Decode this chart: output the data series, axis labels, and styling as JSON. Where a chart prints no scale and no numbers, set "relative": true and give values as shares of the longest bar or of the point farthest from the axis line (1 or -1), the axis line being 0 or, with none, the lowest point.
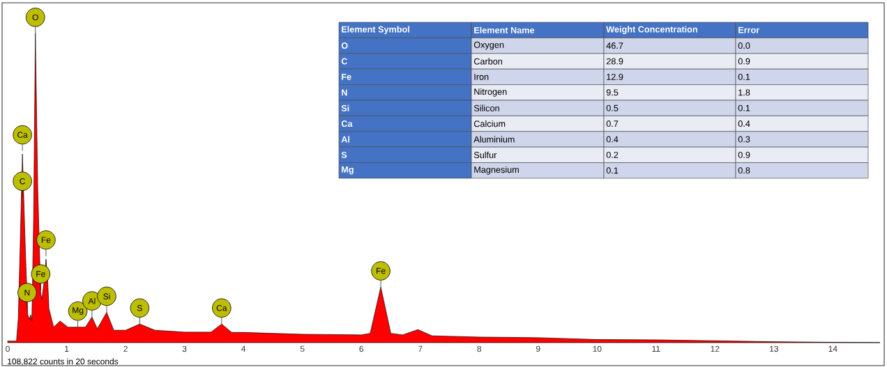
{
  "chart_data": [
    {
      "type": "area",
      "relative": true,
      "color": "#ff0000",
      "x": [
        0,
        0.15,
        0.18,
        0.21,
        0.25,
        0.3,
        0.34,
        0.37,
        0.39,
        0.41,
        0.44,
        0.47,
        0.51,
        0.56,
        0.58,
        0.62,
        0.65,
        0.68,
        0.7,
        0.78,
        0.89,
        1.02,
        1.19,
        1.32,
        1.43,
        1.52,
        1.68,
        1.8,
        2.0,
        2.24,
        2.5,
        3.0,
        3.45,
        3.63,
        3.8,
        4.0,
        5.0,
        6.0,
        6.15,
        6.33,
        6.5,
        6.7,
        6.96,
        7.2,
        8,
        9,
        10,
        11,
        12,
        13,
        14,
        14.8
      ],
      "values": [
        0.005,
        0.005,
        0.08,
        0.3,
        0.61,
        0.3,
        0.09,
        0.076,
        0.09,
        0.07,
        0.4,
        1.0,
        0.5,
        0.16,
        0.14,
        0.2,
        0.27,
        0.2,
        0.11,
        0.05,
        0.07,
        0.05,
        0.05,
        0.05,
        0.083,
        0.045,
        0.098,
        0.04,
        0.04,
        0.06,
        0.04,
        0.034,
        0.034,
        0.06,
        0.033,
        0.033,
        0.027,
        0.025,
        0.03,
        0.18,
        0.03,
        0.025,
        0.042,
        0.022,
        0.018,
        0.016,
        0.01,
        0.009,
        0.006,
        0.003,
        0.001,
        0
      ],
      "xlim": [
        0,
        14.8
      ],
      "xticks": [
        0,
        1,
        2,
        3,
        4,
        5,
        6,
        7,
        8,
        9,
        10,
        11,
        12,
        13,
        14
      ],
      "annotations": [
        {
          "text": "O",
          "x": 0.47,
          "y": 1.0
        },
        {
          "text": "Ca",
          "x": 0.25,
          "y": 0.62
        },
        {
          "text": "C",
          "x": 0.25,
          "y": 0.47
        },
        {
          "text": "N",
          "x": 0.33,
          "y": 0.11
        },
        {
          "text": "Fe",
          "x": 0.56,
          "y": 0.17
        },
        {
          "text": "Fe",
          "x": 0.65,
          "y": 0.28
        },
        {
          "text": "Mg",
          "x": 1.19,
          "y": 0.05
        },
        {
          "text": "Al",
          "x": 1.43,
          "y": 0.083
        },
        {
          "text": "Si",
          "x": 1.68,
          "y": 0.098
        },
        {
          "text": "S",
          "x": 2.24,
          "y": 0.06
        },
        {
          "text": "Ca",
          "x": 3.63,
          "y": 0.06
        },
        {
          "text": "Fe",
          "x": 6.33,
          "y": 0.18
        },
        "108,822 counts in 20 seconds"
      ]
    },
    {
      "type": "other",
      "categories": [
        "O",
        "C",
        "Fe",
        "N",
        "Si",
        "Ca",
        "Al",
        "S",
        "Mg"
      ],
      "annotations": [
        "Element Symbol",
        "Element Name",
        "Oxygen",
        "Carbon",
        "Iron",
        "Nitrogen",
        "Silicon",
        "Calcium",
        "Aluminium",
        "Sulfur",
        "Magnesium"
      ],
      "colors": [
        "#4472c4",
        "#cfd5ea",
        "#e9ebf5"
      ],
      "series": [
        {
          "name": "Weight Concentration",
          "values": [
            46.7,
            28.9,
            12.9,
            9.5,
            0.5,
            0.7,
            0.4,
            0.2,
            0.1
          ],
          "colors": [
            "#cfd5ea",
            "#e9ebf5",
            "#cfd5ea",
            "#e9ebf5",
            "#cfd5ea",
            "#e9ebf5",
            "#cfd5ea",
            "#e9ebf5",
            "#cfd5ea"
          ]
        },
        {
          "name": "Error",
          "values": [
            0.0,
            0.9,
            0.1,
            1.8,
            0.1,
            0.4,
            0.3,
            0.9,
            0.8
          ],
          "value_labels": [
            "0.0",
            "0.9",
            "0.1",
            "1.8",
            "0.1",
            "0.4",
            "0.3",
            "0.9",
            "0.8"
          ],
          "colors": [
            "#cfd5ea",
            "#e9ebf5",
            "#cfd5ea",
            "#e9ebf5",
            "#cfd5ea",
            "#e9ebf5",
            "#cfd5ea",
            "#e9ebf5",
            "#cfd5ea"
          ]
        }
      ],
      "data_labels": true
    }
  ]
}
